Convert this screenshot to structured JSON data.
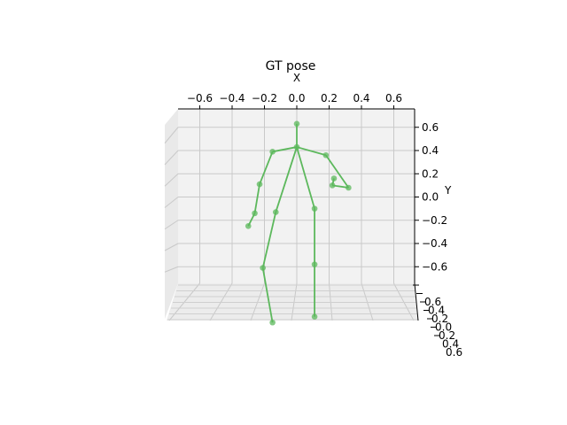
{
  "chart_data": {
    "type": "scatter",
    "title": "GT pose",
    "xlabel": "X",
    "ylabel": "Y",
    "zlabel": "",
    "xlim": [
      -0.75,
      0.75
    ],
    "ylim": [
      -0.75,
      0.75
    ],
    "x_ticks": [
      "−0.6",
      "−0.4",
      "−0.2",
      "0.0",
      "0.2",
      "0.4",
      "0.6"
    ],
    "y_ticks": [
      "0.6",
      "0.4",
      "0.2",
      "0.0",
      "−0.2",
      "−0.4",
      "−0.6"
    ],
    "z_ticks": [
      "0.6",
      "0.4",
      "0.2",
      "0.0",
      "0.2",
      "0.4",
      "0.6"
    ],
    "grid": true,
    "color": "#5cb85c",
    "joints": [
      {
        "id": "head_top",
        "x": 0.0,
        "y": 0.63
      },
      {
        "id": "neck",
        "x": 0.0,
        "y": 0.43
      },
      {
        "id": "shoulder_r",
        "x": -0.15,
        "y": 0.39
      },
      {
        "id": "elbow_r",
        "x": -0.23,
        "y": 0.11
      },
      {
        "id": "wrist_r",
        "x": -0.26,
        "y": -0.14
      },
      {
        "id": "hand_r",
        "x": -0.3,
        "y": -0.25
      },
      {
        "id": "shoulder_l",
        "x": 0.18,
        "y": 0.36
      },
      {
        "id": "elbow_l",
        "x": 0.32,
        "y": 0.08
      },
      {
        "id": "wrist_l",
        "x": 0.22,
        "y": 0.1
      },
      {
        "id": "hand_l",
        "x": 0.23,
        "y": 0.16
      },
      {
        "id": "hip_r",
        "x": -0.13,
        "y": -0.13
      },
      {
        "id": "knee_r",
        "x": -0.21,
        "y": -0.61
      },
      {
        "id": "ankle_r",
        "x": -0.15,
        "y": -1.08
      },
      {
        "id": "hip_l",
        "x": 0.11,
        "y": -0.1
      },
      {
        "id": "knee_l",
        "x": 0.11,
        "y": -0.58
      },
      {
        "id": "ankle_l",
        "x": 0.11,
        "y": -1.03
      }
    ],
    "bones": [
      [
        "head_top",
        "neck"
      ],
      [
        "neck",
        "shoulder_r"
      ],
      [
        "shoulder_r",
        "elbow_r"
      ],
      [
        "elbow_r",
        "wrist_r"
      ],
      [
        "wrist_r",
        "hand_r"
      ],
      [
        "neck",
        "shoulder_l"
      ],
      [
        "shoulder_l",
        "elbow_l"
      ],
      [
        "elbow_l",
        "wrist_l"
      ],
      [
        "wrist_l",
        "hand_l"
      ],
      [
        "neck",
        "hip_r"
      ],
      [
        "hip_r",
        "knee_r"
      ],
      [
        "knee_r",
        "ankle_r"
      ],
      [
        "neck",
        "hip_l"
      ],
      [
        "hip_l",
        "knee_l"
      ],
      [
        "knee_l",
        "ankle_l"
      ]
    ]
  }
}
